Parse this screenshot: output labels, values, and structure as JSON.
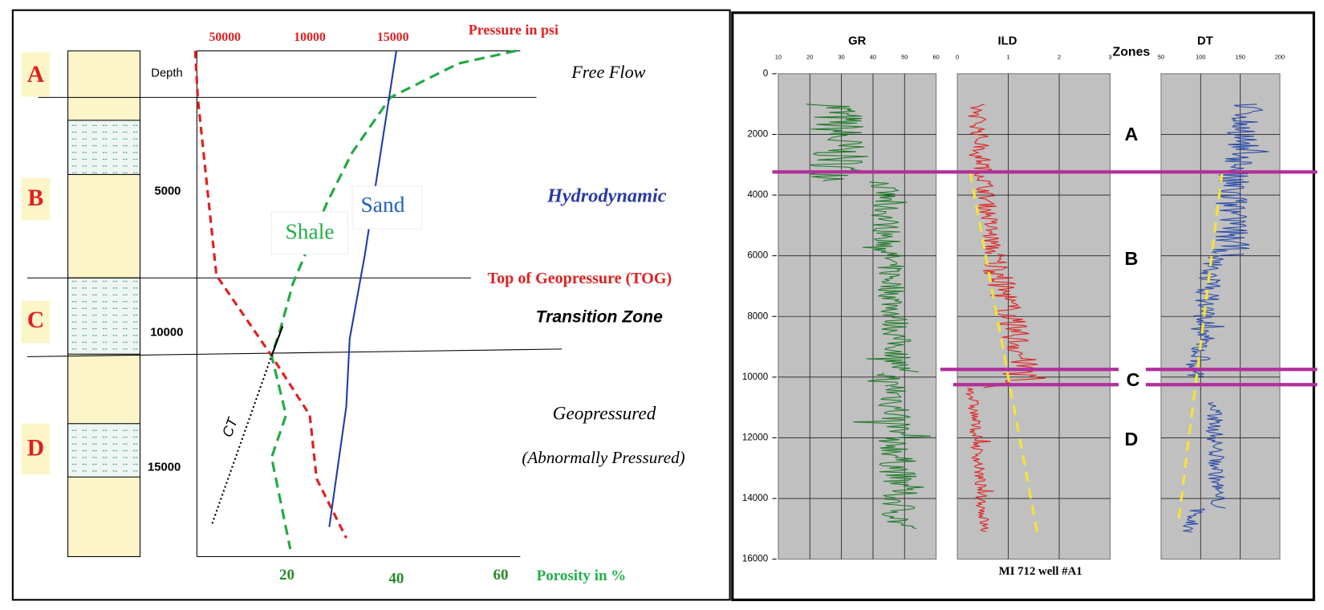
{
  "left_panel": {
    "zones": [
      "A",
      "B",
      "C",
      "D"
    ],
    "depth_label": "Depth",
    "depths": [
      "5000",
      "10000",
      "15000"
    ],
    "pressure_ticks": [
      "50000",
      "10000",
      "15000"
    ],
    "pressure_label": "Pressure in psi",
    "porosity_ticks": [
      "20",
      "40",
      "60"
    ],
    "porosity_label": "Porosity in %",
    "curve_labels": {
      "shale": "Shale",
      "sand": "Sand",
      "ct": "CT"
    },
    "regimes": {
      "free_flow": "Free Flow",
      "hydrodynamic": "Hydrodynamic",
      "tog": "Top of Geopressure (TOG)",
      "transition": "Transition Zone",
      "geopressured": "Geopressured",
      "abnormal": "(Abnormally Pressured)"
    }
  },
  "right_panel": {
    "tracks": [
      {
        "title": "GR",
        "ticks": [
          "10",
          "20",
          "30",
          "40",
          "50",
          "60"
        ]
      },
      {
        "title": "ILD",
        "ticks": [
          "0",
          "1",
          "2",
          "3"
        ]
      },
      {
        "title": "DT",
        "ticks": [
          "50",
          "100",
          "150",
          "200"
        ]
      }
    ],
    "zones_label": "Zones",
    "zones": [
      "A",
      "B",
      "C",
      "D"
    ],
    "depths": [
      "0",
      "2000",
      "4000",
      "6000",
      "8000",
      "10000",
      "12000",
      "14000",
      "16000"
    ],
    "caption": "MI 712 well #A1"
  }
}
